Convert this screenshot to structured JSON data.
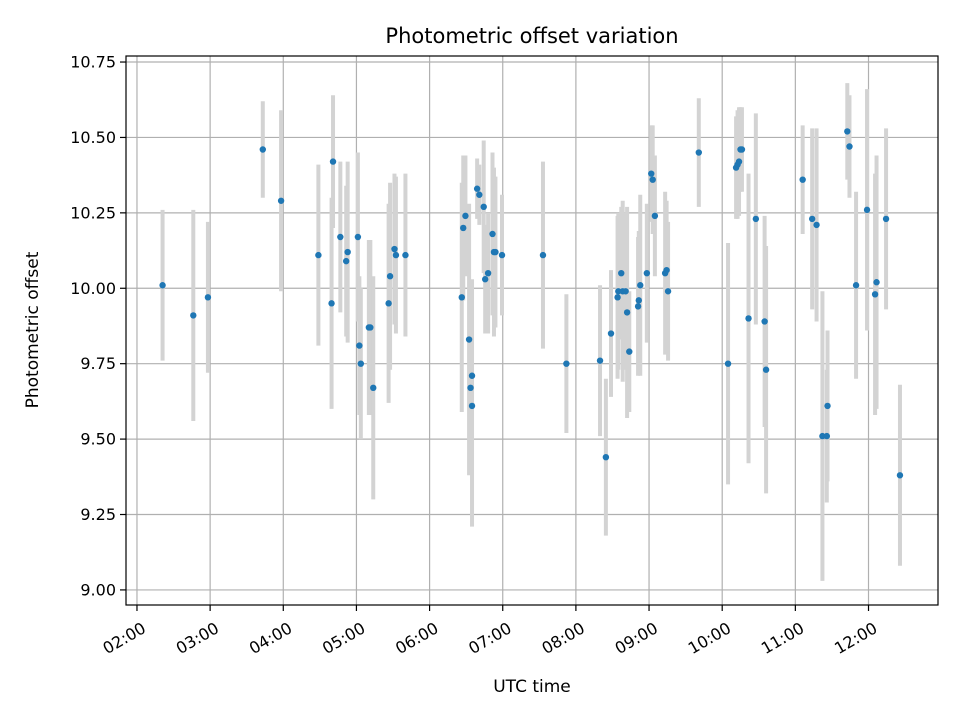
{
  "chart_data": {
    "type": "scatter",
    "title": "Photometric offset variation",
    "xlabel": "UTC time",
    "ylabel": "Photometric offset",
    "x_unit": "UTC hour of day",
    "xlim": [
      1.85,
      12.95
    ],
    "ylim": [
      8.95,
      10.77
    ],
    "grid": true,
    "colors": {
      "point": "#1f77b4",
      "errorbar": "#d3d3d3",
      "grid": "#b0b0b0",
      "axes": "#000000"
    },
    "x_ticks": [
      {
        "value": 2,
        "label": "02:00"
      },
      {
        "value": 3,
        "label": "03:00"
      },
      {
        "value": 4,
        "label": "04:00"
      },
      {
        "value": 5,
        "label": "05:00"
      },
      {
        "value": 6,
        "label": "06:00"
      },
      {
        "value": 7,
        "label": "07:00"
      },
      {
        "value": 8,
        "label": "08:00"
      },
      {
        "value": 9,
        "label": "09:00"
      },
      {
        "value": 10,
        "label": "10:00"
      },
      {
        "value": 11,
        "label": "11:00"
      },
      {
        "value": 12,
        "label": "12:00"
      }
    ],
    "y_ticks": [
      {
        "value": 9.0,
        "label": "9.00"
      },
      {
        "value": 9.25,
        "label": "9.25"
      },
      {
        "value": 9.5,
        "label": "9.50"
      },
      {
        "value": 9.75,
        "label": "9.75"
      },
      {
        "value": 10.0,
        "label": "10.00"
      },
      {
        "value": 10.25,
        "label": "10.25"
      },
      {
        "value": 10.5,
        "label": "10.50"
      },
      {
        "value": 10.75,
        "label": "10.75"
      }
    ],
    "points": [
      [
        2.35,
        10.01,
        0.25
      ],
      [
        2.77,
        9.91,
        0.35
      ],
      [
        2.97,
        9.97,
        0.25
      ],
      [
        3.72,
        10.46,
        0.16
      ],
      [
        3.97,
        10.29,
        0.3
      ],
      [
        4.48,
        10.11,
        0.3
      ],
      [
        4.66,
        9.95,
        0.35
      ],
      [
        4.68,
        10.42,
        0.22
      ],
      [
        4.78,
        10.17,
        0.25
      ],
      [
        4.86,
        10.09,
        0.25
      ],
      [
        4.88,
        10.12,
        0.3
      ],
      [
        5.02,
        10.17,
        0.28
      ],
      [
        5.04,
        9.81,
        0.23
      ],
      [
        5.06,
        9.75,
        0.25
      ],
      [
        5.17,
        9.87,
        0.29
      ],
      [
        5.19,
        9.87,
        0.29
      ],
      [
        5.23,
        9.67,
        0.37
      ],
      [
        5.44,
        9.95,
        0.33
      ],
      [
        5.46,
        10.04,
        0.31
      ],
      [
        5.52,
        10.13,
        0.25
      ],
      [
        5.54,
        10.11,
        0.26
      ],
      [
        5.67,
        10.11,
        0.27
      ],
      [
        6.44,
        9.97,
        0.38
      ],
      [
        6.46,
        10.2,
        0.24
      ],
      [
        6.49,
        10.24,
        0.2
      ],
      [
        6.54,
        9.83,
        0.45
      ],
      [
        6.56,
        9.67,
        0.28
      ],
      [
        6.58,
        9.71,
        0.32
      ],
      [
        6.58,
        9.61,
        0.4
      ],
      [
        6.65,
        10.33,
        0.1
      ],
      [
        6.68,
        10.31,
        0.1
      ],
      [
        6.74,
        10.27,
        0.22
      ],
      [
        6.76,
        10.03,
        0.18
      ],
      [
        6.8,
        10.05,
        0.2
      ],
      [
        6.86,
        10.18,
        0.27
      ],
      [
        6.88,
        10.12,
        0.28
      ],
      [
        6.9,
        10.12,
        0.25
      ],
      [
        6.99,
        10.11,
        0.2
      ],
      [
        7.55,
        10.11,
        0.31
      ],
      [
        7.87,
        9.75,
        0.23
      ],
      [
        8.33,
        9.76,
        0.25
      ],
      [
        8.41,
        9.44,
        0.26
      ],
      [
        8.48,
        9.85,
        0.21
      ],
      [
        8.57,
        9.97,
        0.27
      ],
      [
        8.58,
        9.99,
        0.26
      ],
      [
        8.62,
        10.05,
        0.22
      ],
      [
        8.64,
        9.99,
        0.3
      ],
      [
        8.68,
        9.99,
        0.26
      ],
      [
        8.7,
        9.92,
        0.35
      ],
      [
        8.73,
        9.79,
        0.2
      ],
      [
        8.85,
        9.94,
        0.23
      ],
      [
        8.86,
        9.96,
        0.23
      ],
      [
        8.88,
        10.01,
        0.3
      ],
      [
        8.97,
        10.05,
        0.23
      ],
      [
        9.03,
        10.38,
        0.16
      ],
      [
        9.05,
        10.36,
        0.18
      ],
      [
        9.08,
        10.24,
        0.2
      ],
      [
        9.22,
        10.05,
        0.27
      ],
      [
        9.24,
        10.06,
        0.23
      ],
      [
        9.26,
        9.99,
        0.23
      ],
      [
        9.68,
        10.45,
        0.18
      ],
      [
        10.08,
        9.75,
        0.4
      ],
      [
        10.19,
        10.4,
        0.17
      ],
      [
        10.21,
        10.41,
        0.18
      ],
      [
        10.23,
        10.42,
        0.18
      ],
      [
        10.25,
        10.46,
        0.14
      ],
      [
        10.27,
        10.46,
        0.14
      ],
      [
        10.36,
        9.9,
        0.48
      ],
      [
        10.46,
        10.23,
        0.35
      ],
      [
        10.58,
        9.89,
        0.35
      ],
      [
        10.6,
        9.73,
        0.41
      ],
      [
        11.1,
        10.36,
        0.18
      ],
      [
        11.23,
        10.23,
        0.3
      ],
      [
        11.29,
        10.21,
        0.32
      ],
      [
        11.37,
        9.51,
        0.48
      ],
      [
        11.43,
        9.51,
        0.22
      ],
      [
        11.44,
        9.61,
        0.25
      ],
      [
        11.71,
        10.52,
        0.16
      ],
      [
        11.74,
        10.47,
        0.17
      ],
      [
        11.83,
        10.01,
        0.31
      ],
      [
        11.98,
        10.26,
        0.4
      ],
      [
        12.09,
        9.98,
        0.4
      ],
      [
        12.11,
        10.02,
        0.42
      ],
      [
        12.24,
        10.23,
        0.3
      ],
      [
        12.43,
        9.38,
        0.3
      ]
    ]
  }
}
